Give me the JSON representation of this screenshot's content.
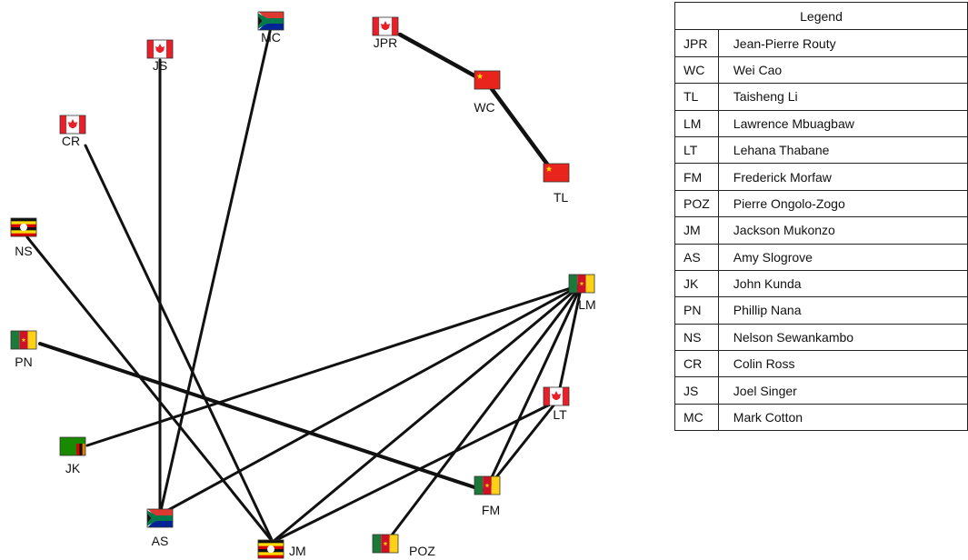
{
  "colors": {
    "edge": "#111111",
    "canada_red": "#e8202a",
    "china_red": "#e8241c",
    "china_star": "#ffd800",
    "cameroon_green": "#1b7a3a",
    "cameroon_red": "#ce1126",
    "cameroon_yellow": "#fcd116",
    "uganda_yellow": "#fcdc04",
    "uganda_red": "#d90000",
    "zambia_green": "#198a00",
    "zambia_orange": "#ef7d00",
    "sa_green": "#007a4d",
    "sa_blue": "#002395",
    "sa_red": "#de3831",
    "sa_gold": "#ffb612"
  },
  "nodes": [
    {
      "id": "JPR",
      "label": "JPR",
      "flag": "canada"
    },
    {
      "id": "WC",
      "label": "WC",
      "flag": "china"
    },
    {
      "id": "TL",
      "label": "TL",
      "flag": "china"
    },
    {
      "id": "JS",
      "label": "JS",
      "flag": "canada"
    },
    {
      "id": "MC",
      "label": "MC",
      "flag": "south-africa"
    },
    {
      "id": "CR",
      "label": "CR",
      "flag": "canada"
    },
    {
      "id": "NS",
      "label": "NS",
      "flag": "uganda"
    },
    {
      "id": "PN",
      "label": "PN",
      "flag": "cameroon"
    },
    {
      "id": "JK",
      "label": "JK",
      "flag": "zambia"
    },
    {
      "id": "AS",
      "label": "AS",
      "flag": "south-africa"
    },
    {
      "id": "JM",
      "label": "JM",
      "flag": "uganda"
    },
    {
      "id": "POZ",
      "label": "POZ",
      "flag": "cameroon"
    },
    {
      "id": "FM",
      "label": "FM",
      "flag": "cameroon"
    },
    {
      "id": "LT",
      "label": "LT",
      "flag": "canada"
    },
    {
      "id": "LM",
      "label": "LM",
      "flag": "cameroon"
    }
  ],
  "edges": [
    [
      "JPR",
      "WC"
    ],
    [
      "WC",
      "TL"
    ],
    [
      "JS",
      "AS"
    ],
    [
      "MC",
      "AS"
    ],
    [
      "CR",
      "JM"
    ],
    [
      "NS",
      "JM"
    ],
    [
      "PN",
      "FM"
    ],
    [
      "JK",
      "LM"
    ],
    [
      "AS",
      "LM"
    ],
    [
      "JM",
      "LM"
    ],
    [
      "JM",
      "LT"
    ],
    [
      "POZ",
      "LM"
    ],
    [
      "FM",
      "LM"
    ],
    [
      "FM",
      "LT"
    ],
    [
      "LT",
      "LM"
    ]
  ],
  "legend": {
    "title": "Legend",
    "rows": [
      {
        "abbr": "JPR",
        "name": "Jean-Pierre Routy"
      },
      {
        "abbr": "WC",
        "name": "Wei Cao"
      },
      {
        "abbr": "TL",
        "name": "Taisheng Li"
      },
      {
        "abbr": "LM",
        "name": "Lawrence Mbuagbaw"
      },
      {
        "abbr": "LT",
        "name": "Lehana Thabane"
      },
      {
        "abbr": "FM",
        "name": "Frederick Morfaw"
      },
      {
        "abbr": "POZ",
        "name": "Pierre Ongolo-Zogo"
      },
      {
        "abbr": "JM",
        "name": "Jackson Mukonzo"
      },
      {
        "abbr": "AS",
        "name": "Amy Slogrove"
      },
      {
        "abbr": "JK",
        "name": "John Kunda"
      },
      {
        "abbr": "PN",
        "name": "Phillip Nana"
      },
      {
        "abbr": "NS",
        "name": "Nelson Sewankambo"
      },
      {
        "abbr": "CR",
        "name": "Colin Ross"
      },
      {
        "abbr": "JS",
        "name": "Joel Singer"
      },
      {
        "abbr": "MC",
        "name": "Mark Cotton"
      }
    ]
  }
}
